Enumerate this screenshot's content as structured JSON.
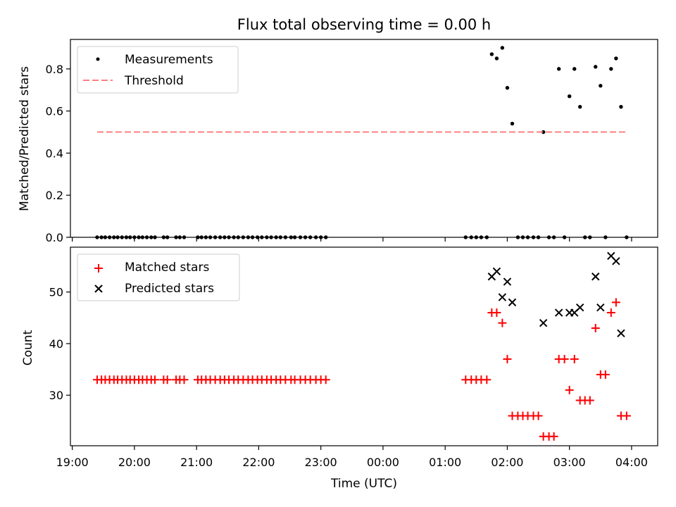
{
  "title": "Flux total observing time = 0.00 h",
  "colors": {
    "threshold": "#ff7f7f",
    "matched": "#ff0000",
    "predicted": "#000000",
    "measurement": "#000000"
  },
  "x_axis": {
    "label": "Time (UTC)",
    "range_hours": [
      18.97,
      28.42
    ],
    "ticks": [
      {
        "h": 19,
        "label": "19:00"
      },
      {
        "h": 20,
        "label": "20:00"
      },
      {
        "h": 21,
        "label": "21:00"
      },
      {
        "h": 22,
        "label": "22:00"
      },
      {
        "h": 23,
        "label": "23:00"
      },
      {
        "h": 24,
        "label": "00:00"
      },
      {
        "h": 25,
        "label": "01:00"
      },
      {
        "h": 26,
        "label": "02:00"
      },
      {
        "h": 27,
        "label": "03:00"
      },
      {
        "h": 28,
        "label": "04:00"
      }
    ]
  },
  "chart_data": [
    {
      "type": "scatter",
      "title": "Flux total observing time = 0.00 h",
      "ylabel": "Matched/Predicted stars",
      "ylim": [
        0,
        0.94
      ],
      "yticks": [
        {
          "v": 0.0,
          "label": "0.0"
        },
        {
          "v": 0.2,
          "label": "0.2"
        },
        {
          "v": 0.4,
          "label": "0.4"
        },
        {
          "v": 0.6,
          "label": "0.6"
        },
        {
          "v": 0.8,
          "label": "0.8"
        }
      ],
      "legend": {
        "position": "upper-left",
        "entries": [
          "Measurements",
          "Threshold"
        ]
      },
      "series": [
        {
          "name": "Measurements",
          "marker": "dot",
          "x": [
            19.4,
            19.47,
            19.53,
            19.6,
            19.67,
            19.73,
            19.8,
            19.87,
            19.93,
            20.0,
            20.07,
            20.13,
            20.2,
            20.27,
            20.33,
            20.47,
            20.53,
            20.67,
            20.73,
            20.8,
            21.02,
            21.08,
            21.15,
            21.22,
            21.3,
            21.38,
            21.45,
            21.52,
            21.6,
            21.67,
            21.75,
            21.83,
            21.9,
            21.98,
            22.05,
            22.13,
            22.2,
            22.28,
            22.35,
            22.43,
            22.52,
            22.58,
            22.67,
            22.75,
            22.83,
            22.92,
            23.0,
            23.08,
            25.33,
            25.42,
            25.5,
            25.58,
            25.67,
            25.75,
            25.83,
            25.92,
            26.0,
            26.08,
            26.17,
            26.25,
            26.33,
            26.42,
            26.5,
            26.58,
            26.67,
            26.75,
            26.83,
            26.92,
            27.0,
            27.08,
            27.17,
            27.25,
            27.33,
            27.42,
            27.5,
            27.58,
            27.67,
            27.75,
            27.83,
            27.92
          ],
          "y": [
            0,
            0,
            0,
            0,
            0,
            0,
            0,
            0,
            0,
            0,
            0,
            0,
            0,
            0,
            0,
            0,
            0,
            0,
            0,
            0,
            0,
            0,
            0,
            0,
            0,
            0,
            0,
            0,
            0,
            0,
            0,
            0,
            0,
            0,
            0,
            0,
            0,
            0,
            0,
            0,
            0,
            0,
            0,
            0,
            0,
            0,
            0,
            0,
            0,
            0,
            0,
            0,
            0,
            0.87,
            0.85,
            0.9,
            0.71,
            0.54,
            0,
            0,
            0,
            0,
            0,
            0.5,
            0,
            0,
            0.8,
            0,
            0.67,
            0.8,
            0.62,
            0,
            0,
            0.81,
            0.72,
            0,
            0.8,
            0.85,
            0.62,
            0
          ]
        },
        {
          "name": "Threshold",
          "style": "dashed",
          "x": [
            19.4,
            27.9
          ],
          "y": [
            0.5,
            0.5
          ]
        }
      ]
    },
    {
      "type": "scatter",
      "xlabel": "Time (UTC)",
      "ylabel": "Count",
      "ylim": [
        20.2,
        58.7
      ],
      "yticks": [
        {
          "v": 30,
          "label": "30"
        },
        {
          "v": 40,
          "label": "40"
        },
        {
          "v": 50,
          "label": "50"
        }
      ],
      "legend": {
        "position": "upper-left",
        "entries": [
          "Matched stars",
          "Predicted stars"
        ]
      },
      "series": [
        {
          "name": "Matched stars",
          "marker": "plus",
          "x": [
            19.4,
            19.47,
            19.53,
            19.6,
            19.67,
            19.73,
            19.8,
            19.87,
            19.93,
            20.0,
            20.07,
            20.13,
            20.2,
            20.27,
            20.33,
            20.47,
            20.53,
            20.67,
            20.73,
            20.8,
            21.02,
            21.08,
            21.15,
            21.22,
            21.3,
            21.38,
            21.45,
            21.52,
            21.6,
            21.67,
            21.75,
            21.83,
            21.9,
            21.98,
            22.05,
            22.13,
            22.2,
            22.28,
            22.35,
            22.43,
            22.52,
            22.58,
            22.67,
            22.75,
            22.83,
            22.92,
            23.0,
            23.08,
            25.33,
            25.42,
            25.5,
            25.58,
            25.67,
            25.75,
            25.83,
            25.92,
            26.0,
            26.08,
            26.17,
            26.25,
            26.33,
            26.42,
            26.5,
            26.58,
            26.67,
            26.75,
            26.83,
            26.92,
            27.0,
            27.08,
            27.17,
            27.25,
            27.33,
            27.42,
            27.5,
            27.58,
            27.67,
            27.75,
            27.83,
            27.92
          ],
          "y": [
            33,
            33,
            33,
            33,
            33,
            33,
            33,
            33,
            33,
            33,
            33,
            33,
            33,
            33,
            33,
            33,
            33,
            33,
            33,
            33,
            33,
            33,
            33,
            33,
            33,
            33,
            33,
            33,
            33,
            33,
            33,
            33,
            33,
            33,
            33,
            33,
            33,
            33,
            33,
            33,
            33,
            33,
            33,
            33,
            33,
            33,
            33,
            33,
            33,
            33,
            33,
            33,
            33,
            46,
            46,
            44,
            37,
            26,
            26,
            26,
            26,
            26,
            26,
            22,
            22,
            22,
            37,
            37,
            31,
            37,
            29,
            29,
            29,
            43,
            34,
            34,
            46,
            48,
            26,
            26
          ]
        },
        {
          "name": "Predicted stars",
          "marker": "x",
          "x": [
            25.75,
            25.83,
            25.92,
            26.0,
            26.08,
            26.58,
            26.83,
            27.0,
            27.08,
            27.17,
            27.42,
            27.5,
            27.67,
            27.75,
            27.83
          ],
          "y": [
            53,
            54,
            49,
            52,
            48,
            44,
            46,
            46,
            46,
            47,
            53,
            47,
            57,
            56,
            42
          ]
        }
      ]
    }
  ]
}
